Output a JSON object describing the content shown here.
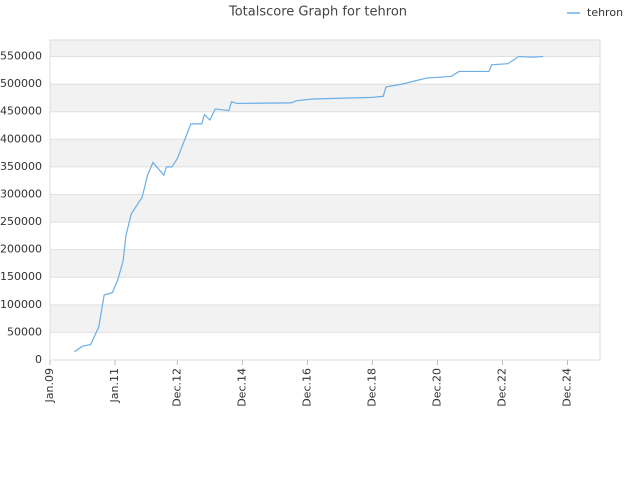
{
  "chart_data": {
    "type": "line",
    "title": "Totalscore Graph for tehron",
    "x": [
      "2009-10",
      "2010-01",
      "2010-04",
      "2010-07",
      "2010-09",
      "2010-12",
      "2011-02",
      "2011-04",
      "2011-05",
      "2011-07",
      "2011-09",
      "2011-11",
      "2012-01",
      "2012-03",
      "2012-07",
      "2012-08",
      "2012-10",
      "2012-12",
      "2013-02",
      "2013-05",
      "2013-09",
      "2013-10",
      "2013-12",
      "2014-02",
      "2014-07",
      "2014-08",
      "2014-10",
      "2016-06",
      "2016-08",
      "2017-02",
      "2018-12",
      "2019-04",
      "2019-05",
      "2019-11",
      "2020-03",
      "2020-08",
      "2021-05",
      "2021-08",
      "2022-07",
      "2022-08",
      "2023-02",
      "2023-06",
      "2023-11",
      "2024-03"
    ],
    "series": [
      {
        "name": "tehron",
        "color": "#6aaee8",
        "values": [
          15000,
          25000,
          28000,
          60000,
          118000,
          122000,
          145000,
          180000,
          225000,
          265000,
          280000,
          295000,
          335000,
          358000,
          335000,
          350000,
          350000,
          365000,
          390000,
          428000,
          428000,
          445000,
          435000,
          455000,
          452000,
          468000,
          465000,
          466000,
          470000,
          473000,
          476000,
          478000,
          495000,
          500000,
          505000,
          511000,
          514000,
          523000,
          523000,
          535000,
          537000,
          550000,
          549000,
          550000
        ]
      }
    ],
    "xlim": [
      "2009-01",
      "2025-12"
    ],
    "xticks": [
      {
        "value": "2009-01",
        "label": "Jan.09"
      },
      {
        "value": "2011-01",
        "label": "Jan.11"
      },
      {
        "value": "2012-12",
        "label": "Dec.12"
      },
      {
        "value": "2014-12",
        "label": "Dec.14"
      },
      {
        "value": "2016-12",
        "label": "Dec.16"
      },
      {
        "value": "2018-12",
        "label": "Dec.18"
      },
      {
        "value": "2020-12",
        "label": "Dec.20"
      },
      {
        "value": "2022-12",
        "label": "Dec.22"
      },
      {
        "value": "2024-12",
        "label": "Dec.24"
      }
    ],
    "ylim": [
      0,
      580000
    ],
    "yticks": [
      0,
      50000,
      100000,
      150000,
      200000,
      250000,
      300000,
      350000,
      400000,
      450000,
      500000,
      550000
    ],
    "grid": true,
    "legend": "top-right"
  }
}
